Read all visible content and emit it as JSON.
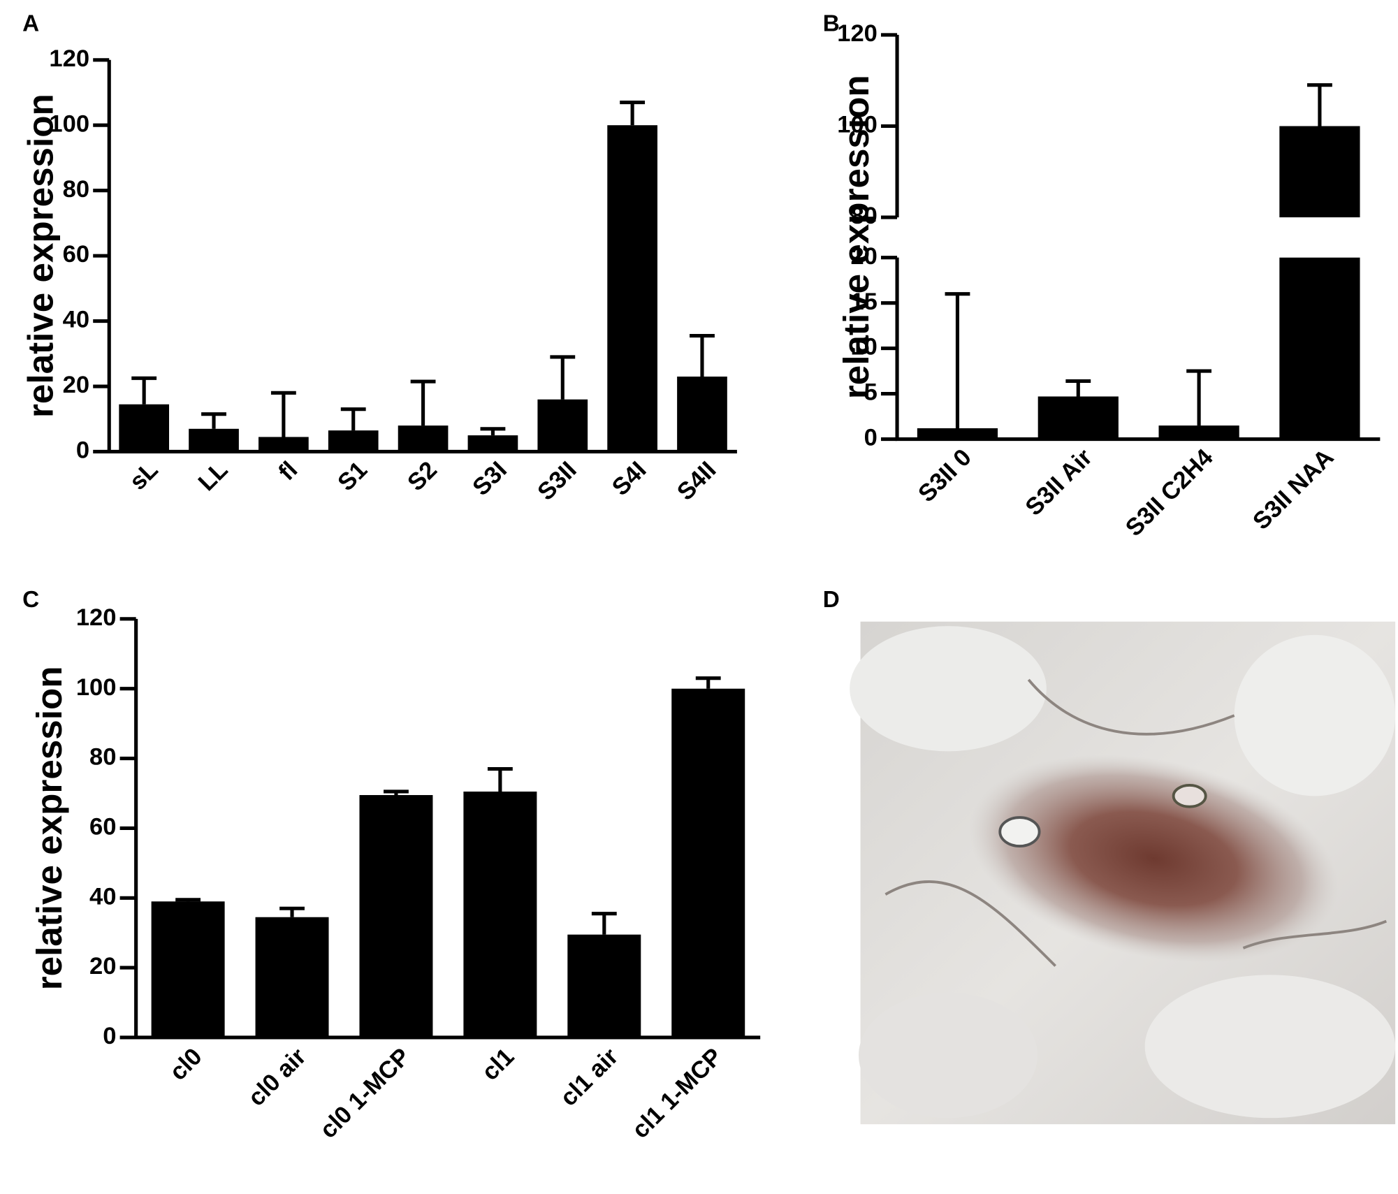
{
  "chart_data": [
    {
      "type": "bar",
      "panel": "A",
      "y_label": "relative expression",
      "categories": [
        "sL",
        "LL",
        "fl",
        "S1",
        "S2",
        "S3I",
        "S3II",
        "S4I",
        "S4II"
      ],
      "values": [
        14.5,
        7,
        4.5,
        6.5,
        8,
        5,
        16,
        100,
        23
      ],
      "errors": [
        8,
        4.5,
        13.5,
        6.5,
        13.5,
        2,
        13,
        7,
        12.5
      ],
      "color": "#000000",
      "ylim": [
        0,
        120
      ],
      "yticks": [
        0,
        20,
        40,
        60,
        80,
        100,
        120
      ]
    },
    {
      "type": "bar",
      "panel": "B",
      "y_label": "relative expression",
      "categories": [
        "S3II 0",
        "S3II Air",
        "S3II C2H4",
        "S3II NAA"
      ],
      "values": [
        1.2,
        4.7,
        1.5,
        100
      ],
      "errors": [
        14.8,
        1.7,
        6,
        9
      ],
      "color": "#000000",
      "ylim": [
        0,
        120
      ],
      "axis_break": [
        20,
        80
      ],
      "yticks": [
        0,
        5,
        10,
        15,
        20,
        80,
        100,
        120
      ]
    },
    {
      "type": "bar",
      "panel": "C",
      "y_label": "relative expression",
      "categories": [
        "cl0",
        "cl0 air",
        "cl0 1-MCP",
        "cl1",
        "cl1 air",
        "cl1 1-MCP"
      ],
      "values": [
        39,
        34.5,
        69.5,
        70.5,
        29.5,
        100
      ],
      "errors": [
        0.5,
        2.5,
        1,
        6.5,
        6,
        3
      ],
      "color": "#000000",
      "ylim": [
        0,
        120
      ],
      "yticks": [
        0,
        20,
        40,
        60,
        80,
        100,
        120
      ]
    },
    {
      "type": "image",
      "panel": "D"
    }
  ]
}
